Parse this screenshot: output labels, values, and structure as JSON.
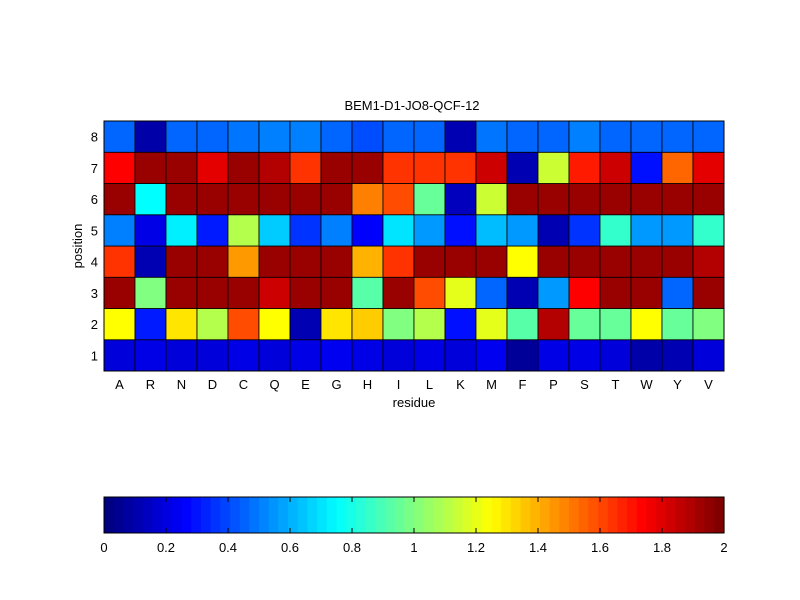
{
  "chart_data": {
    "type": "heatmap",
    "title": "BEM1-D1-JO8-QCF-12",
    "xlabel": "residue",
    "ylabel": "position",
    "x_categories": [
      "A",
      "R",
      "N",
      "D",
      "C",
      "Q",
      "E",
      "G",
      "H",
      "I",
      "L",
      "K",
      "M",
      "F",
      "P",
      "S",
      "T",
      "W",
      "Y",
      "V"
    ],
    "y_categories": [
      "1",
      "2",
      "3",
      "4",
      "5",
      "6",
      "7",
      "8"
    ],
    "colormap": "jet",
    "clim": [
      0,
      2
    ],
    "colorbar": {
      "placement": "bottom",
      "ticks": [
        0,
        0.2,
        0.4,
        0.6,
        0.8,
        1,
        1.2,
        1.4,
        1.6,
        1.8,
        2
      ],
      "tick_labels": [
        "0",
        "0.2",
        "0.4",
        "0.6",
        "0.8",
        "1",
        "1.2",
        "1.4",
        "1.6",
        "1.8",
        "2"
      ]
    },
    "values": [
      [
        0.18,
        0.2,
        0.18,
        0.18,
        0.2,
        0.18,
        0.2,
        0.22,
        0.2,
        0.18,
        0.2,
        0.18,
        0.22,
        0.05,
        0.2,
        0.2,
        0.18,
        0.08,
        0.1,
        0.18
      ],
      [
        1.25,
        0.3,
        1.3,
        1.1,
        1.6,
        1.25,
        0.1,
        1.3,
        1.35,
        1.0,
        1.1,
        0.28,
        1.2,
        0.92,
        1.9,
        0.95,
        0.95,
        1.25,
        0.95,
        1.0
      ],
      [
        1.95,
        1.0,
        1.95,
        1.95,
        1.95,
        1.85,
        1.95,
        1.95,
        0.92,
        1.95,
        1.6,
        1.2,
        0.45,
        0.1,
        0.55,
        1.75,
        1.95,
        1.95,
        0.45,
        1.95
      ],
      [
        1.65,
        0.1,
        1.95,
        1.95,
        1.45,
        1.95,
        1.95,
        1.95,
        1.4,
        1.65,
        1.95,
        1.95,
        1.95,
        1.25,
        1.95,
        1.95,
        1.95,
        1.95,
        1.95,
        1.9
      ],
      [
        0.5,
        0.2,
        0.72,
        0.3,
        1.1,
        0.65,
        0.35,
        0.5,
        0.25,
        0.7,
        0.55,
        0.28,
        0.62,
        0.55,
        0.1,
        0.35,
        0.85,
        0.55,
        0.55,
        0.85
      ],
      [
        1.95,
        0.75,
        1.95,
        1.95,
        1.95,
        1.95,
        1.95,
        1.95,
        1.5,
        1.6,
        0.95,
        0.12,
        1.15,
        1.95,
        1.95,
        1.95,
        1.95,
        1.95,
        1.95,
        1.95
      ],
      [
        1.75,
        1.95,
        1.95,
        1.8,
        1.95,
        1.9,
        1.65,
        1.95,
        1.95,
        1.65,
        1.65,
        1.65,
        1.85,
        0.1,
        1.15,
        1.7,
        1.85,
        0.28,
        1.55,
        1.8
      ],
      [
        0.45,
        0.08,
        0.45,
        0.45,
        0.48,
        0.5,
        0.5,
        0.45,
        0.4,
        0.45,
        0.45,
        0.1,
        0.48,
        0.45,
        0.45,
        0.5,
        0.45,
        0.45,
        0.45,
        0.45
      ]
    ]
  }
}
